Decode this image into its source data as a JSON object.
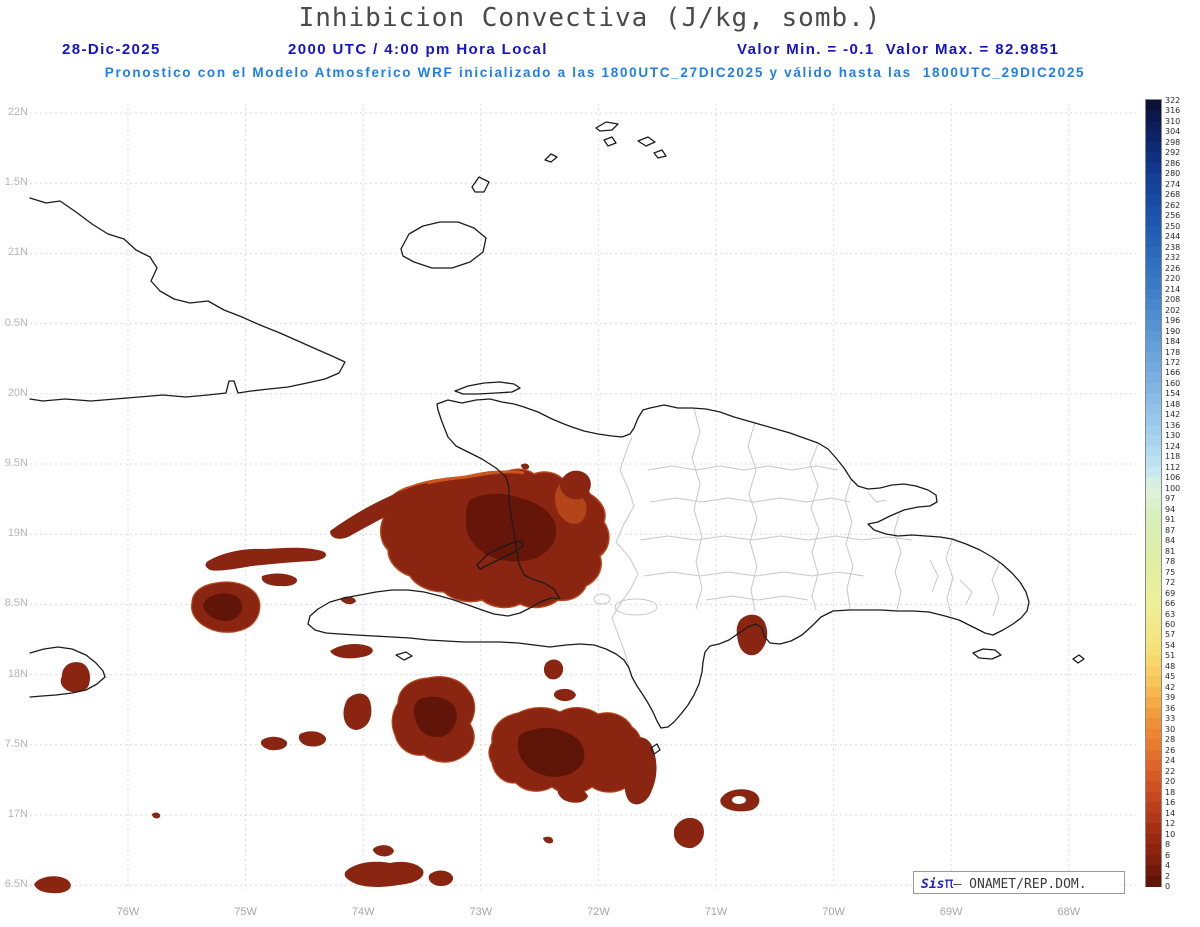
{
  "title": "Inhibicion Convectiva (J/kg, somb.)",
  "header": {
    "date": "28-Dic-2025",
    "time": "2000 UTC / 4:00 pm Hora Local",
    "minmax": "Valor Min. = -0.1  Valor Max. = 82.9851",
    "forecast": "Pronostico con el Modelo Atmosferico WRF inicializado a las 1800UTC_27DIC2025 y válido hasta las  1800UTC_29DIC2025"
  },
  "axes": {
    "lat_labels": [
      "22N",
      "1.5N",
      "21N",
      "0.5N",
      "20N",
      "9.5N",
      "19N",
      "8.5N",
      "18N",
      "7.5N",
      "17N",
      "6.5N"
    ],
    "lon_labels": [
      "76W",
      "75W",
      "74W",
      "73W",
      "72W",
      "71W",
      "70W",
      "69W",
      "68W"
    ]
  },
  "colorbar": {
    "ticks": [
      322,
      316,
      310,
      304,
      298,
      292,
      286,
      280,
      274,
      268,
      262,
      256,
      250,
      244,
      238,
      232,
      226,
      220,
      214,
      208,
      202,
      196,
      190,
      184,
      178,
      172,
      166,
      160,
      154,
      148,
      142,
      136,
      130,
      124,
      118,
      112,
      106,
      100,
      97,
      94,
      91,
      87,
      84,
      81,
      78,
      75,
      72,
      69,
      66,
      63,
      60,
      57,
      54,
      51,
      48,
      45,
      42,
      39,
      36,
      33,
      30,
      28,
      26,
      24,
      22,
      20,
      18,
      16,
      14,
      12,
      10,
      8,
      6,
      4,
      2,
      0
    ],
    "stops": [
      {
        "v": 322,
        "c": "#0a102e"
      },
      {
        "v": 304,
        "c": "#0c1f63"
      },
      {
        "v": 280,
        "c": "#123c92"
      },
      {
        "v": 250,
        "c": "#1f5ab2"
      },
      {
        "v": 220,
        "c": "#3678c4"
      },
      {
        "v": 190,
        "c": "#5896d3"
      },
      {
        "v": 160,
        "c": "#7db3e2"
      },
      {
        "v": 130,
        "c": "#a5d1ee"
      },
      {
        "v": 109,
        "c": "#c6e8f0"
      },
      {
        "v": 100,
        "c": "#dff3dc"
      },
      {
        "v": 91,
        "c": "#d5efba"
      },
      {
        "v": 78,
        "c": "#e0efa4"
      },
      {
        "v": 66,
        "c": "#eef098"
      },
      {
        "v": 54,
        "c": "#f6e37c"
      },
      {
        "v": 45,
        "c": "#f8ca5f"
      },
      {
        "v": 36,
        "c": "#f4a440"
      },
      {
        "v": 28,
        "c": "#ea8030"
      },
      {
        "v": 22,
        "c": "#db5f25"
      },
      {
        "v": 16,
        "c": "#c2431d"
      },
      {
        "v": 10,
        "c": "#a02c13"
      },
      {
        "v": 4,
        "c": "#7b1b0c"
      },
      {
        "v": 0,
        "c": "#5a1107"
      }
    ]
  },
  "branding": {
    "sis": "Sis",
    "pi": "π",
    "org": "– ONAMET/REP.DOM."
  },
  "palette": {
    "header_blue": "#1212cf",
    "forecast_blue": "#1e7fe8",
    "title_gray": "#4a4a4a",
    "axis_gray": "#b4b4b4",
    "coast_black": "#1b1b1b",
    "province_gray": "#c7c7c7",
    "blob_dark": "#5f1408",
    "blob_main": "#8a2511",
    "blob_fringe": "#d05c1e"
  },
  "chart_data": {
    "type": "map",
    "variable": "Inhibicion Convectiva",
    "units": "J/kg",
    "valor_min": -0.1,
    "valor_max": 82.9851,
    "model": "WRF",
    "init": "1800UTC_27DIC2025",
    "valid_hasta": "1800UTC_29DIC2025",
    "run_date": "28-Dic-2025",
    "run_time": "2000 UTC / 4:00 pm Hora Local",
    "lat_range": [
      "16.5N",
      "22N"
    ],
    "lon_range": [
      "76W",
      "68W"
    ],
    "legend_position": "right",
    "grid": true
  }
}
